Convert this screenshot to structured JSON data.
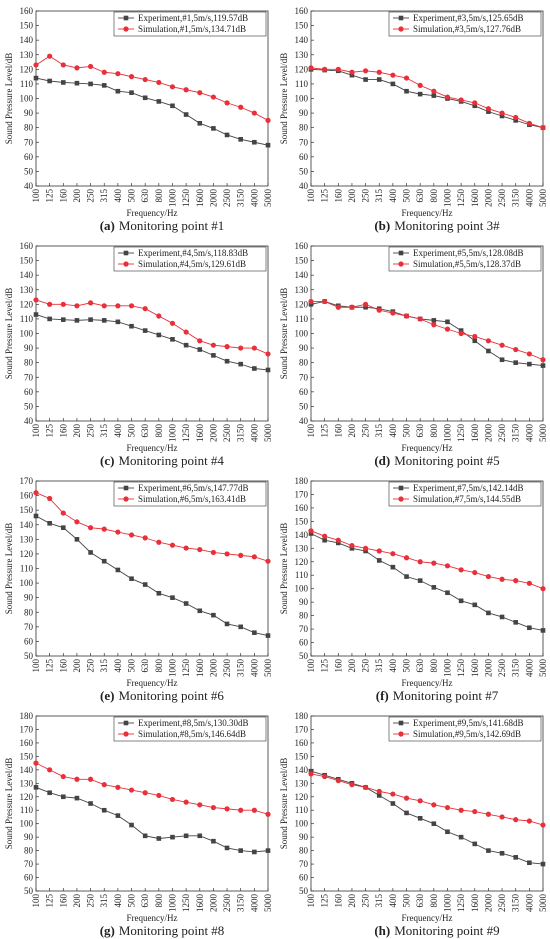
{
  "chart_data": [
    {
      "type": "line",
      "caption_tag": "(a)",
      "caption": "Monitoring point #1",
      "xlabel": "Frequency/Hz",
      "ylabel": "Sound Pressure Level/dB",
      "categories": [
        "100",
        "125",
        "160",
        "200",
        "250",
        "315",
        "400",
        "500",
        "630",
        "800",
        "1000",
        "1250",
        "1600",
        "2000",
        "2500",
        "3150",
        "4000",
        "5000"
      ],
      "ylim": [
        40,
        160
      ],
      "yticks": [
        40,
        50,
        60,
        70,
        80,
        90,
        100,
        110,
        120,
        130,
        140,
        150,
        160
      ],
      "legend": "upper right",
      "series": [
        {
          "name": "Experiment,#1,5m/s,119.57dB",
          "color": "#444444",
          "marker": "square",
          "values": [
            114,
            112,
            111,
            110.5,
            110,
            109,
            105,
            104,
            100.5,
            98,
            95,
            89,
            83,
            79.5,
            75,
            72,
            70,
            68
          ]
        },
        {
          "name": "Simulation,#1,5m/s,134.71dB",
          "color": "#e8303a",
          "marker": "circle",
          "values": [
            123,
            129,
            123,
            121,
            122,
            118,
            117,
            115,
            113,
            111,
            108,
            106,
            104,
            101,
            97,
            94,
            90,
            85
          ]
        }
      ]
    },
    {
      "type": "line",
      "caption_tag": "(b)",
      "caption": "Monitoring point 3#",
      "xlabel": "Frequency/Hz",
      "ylabel": "Sound Pressure Level/dB",
      "categories": [
        "100",
        "125",
        "160",
        "200",
        "250",
        "315",
        "400",
        "500",
        "630",
        "800",
        "1000",
        "1250",
        "1600",
        "2000",
        "2500",
        "3150",
        "4000",
        "5000"
      ],
      "ylim": [
        40,
        160
      ],
      "yticks": [
        40,
        50,
        60,
        70,
        80,
        90,
        100,
        110,
        120,
        130,
        140,
        150,
        160
      ],
      "legend": "upper right",
      "series": [
        {
          "name": "Experiment,#3,5m/s,125.65dB",
          "color": "#444444",
          "marker": "square",
          "values": [
            120,
            119.5,
            119,
            116,
            113,
            113,
            110,
            105,
            103,
            102,
            100,
            98,
            95,
            91,
            88,
            85,
            82,
            80
          ]
        },
        {
          "name": "Simulation,#3,5m/s,127.76dB",
          "color": "#e8303a",
          "marker": "circle",
          "values": [
            121,
            120,
            120,
            118,
            119,
            118,
            116,
            114,
            109,
            105,
            101,
            99,
            97,
            93,
            90,
            87,
            83,
            80
          ]
        }
      ]
    },
    {
      "type": "line",
      "caption_tag": "(c)",
      "caption": "Monitoring point #4",
      "xlabel": "Frequency/Hz",
      "ylabel": "Sound Pressure Level/dB",
      "categories": [
        "100",
        "125",
        "160",
        "200",
        "250",
        "315",
        "400",
        "500",
        "630",
        "800",
        "1000",
        "1250",
        "1600",
        "2000",
        "2500",
        "3150",
        "4000",
        "5000"
      ],
      "ylim": [
        40,
        160
      ],
      "yticks": [
        40,
        50,
        60,
        70,
        80,
        90,
        100,
        110,
        120,
        130,
        140,
        150,
        160
      ],
      "legend": "upper right",
      "series": [
        {
          "name": "Experiment,#4,5m/s,118.83dB",
          "color": "#444444",
          "marker": "square",
          "values": [
            113,
            110,
            109.5,
            109,
            109.5,
            109,
            108,
            105,
            102,
            99,
            96,
            92,
            89,
            85,
            81,
            79,
            76,
            75
          ]
        },
        {
          "name": "Simulation,#4,5m/s,129.61dB",
          "color": "#e8303a",
          "marker": "circle",
          "values": [
            123,
            120,
            120,
            119,
            121,
            119,
            119,
            119,
            117,
            112,
            107,
            101,
            95,
            92,
            91,
            90,
            90,
            86
          ]
        }
      ]
    },
    {
      "type": "line",
      "caption_tag": "(d)",
      "caption": "Monitoring point #5",
      "xlabel": "Frequency/Hz",
      "ylabel": "Sound Pressure Level/dB",
      "categories": [
        "100",
        "125",
        "160",
        "200",
        "250",
        "315",
        "400",
        "500",
        "630",
        "800",
        "1000",
        "1250",
        "1600",
        "2000",
        "2500",
        "3150",
        "4000",
        "5000"
      ],
      "ylim": [
        40,
        160
      ],
      "yticks": [
        40,
        50,
        60,
        70,
        80,
        90,
        100,
        110,
        120,
        130,
        140,
        150,
        160
      ],
      "legend": "upper right",
      "series": [
        {
          "name": "Experiment,#5,5m/s,128.08dB",
          "color": "#444444",
          "marker": "square",
          "values": [
            120,
            122,
            119,
            118,
            118,
            117,
            115,
            112,
            110,
            109,
            108,
            102,
            95,
            88,
            82,
            80,
            79,
            78
          ]
        },
        {
          "name": "Simulation,#5,5m/s,128.37dB",
          "color": "#e8303a",
          "marker": "circle",
          "values": [
            122,
            122,
            118,
            118,
            120,
            116,
            114,
            112,
            110,
            106,
            103,
            100,
            98,
            95,
            92,
            89,
            86,
            82
          ]
        }
      ]
    },
    {
      "type": "line",
      "caption_tag": "(e)",
      "caption": "Monitoring point #6",
      "xlabel": "Frequency/Hz",
      "ylabel": "Sound Pressure Level/dB",
      "categories": [
        "100",
        "125",
        "160",
        "200",
        "250",
        "315",
        "400",
        "500",
        "630",
        "800",
        "1000",
        "1250",
        "1600",
        "2000",
        "2500",
        "3150",
        "4000",
        "5000"
      ],
      "ylim": [
        50,
        170
      ],
      "yticks": [
        50,
        60,
        70,
        80,
        90,
        100,
        110,
        120,
        130,
        140,
        150,
        160,
        170
      ],
      "legend": "upper right",
      "series": [
        {
          "name": "Experiment,#6,5m/s,147.77dB",
          "color": "#444444",
          "marker": "square",
          "values": [
            146,
            141,
            138,
            130,
            121,
            115,
            109,
            103,
            99,
            93,
            90,
            86,
            81,
            78,
            72,
            70,
            66,
            64
          ]
        },
        {
          "name": "Simulation,#6,5m/s,163.41dB",
          "color": "#e8303a",
          "marker": "circle",
          "values": [
            162,
            158,
            148,
            142,
            138,
            137,
            135,
            133,
            131,
            128,
            126,
            124,
            123,
            121,
            120,
            119,
            118,
            115
          ]
        }
      ]
    },
    {
      "type": "line",
      "caption_tag": "(f)",
      "caption": "Monitoring point #7",
      "xlabel": "Frequency/Hz",
      "ylabel": "Sound Pressure Level/dB",
      "categories": [
        "100",
        "125",
        "160",
        "200",
        "250",
        "315",
        "400",
        "500",
        "630",
        "800",
        "1000",
        "1250",
        "1600",
        "2000",
        "2500",
        "3150",
        "4000",
        "5000"
      ],
      "ylim": [
        50,
        180
      ],
      "yticks": [
        50,
        60,
        70,
        80,
        90,
        100,
        110,
        120,
        130,
        140,
        150,
        160,
        170,
        180
      ],
      "legend": "upper right",
      "series": [
        {
          "name": "Experiment,#7,5m/s,142.14dB",
          "color": "#444444",
          "marker": "square",
          "values": [
            141,
            136,
            134,
            130,
            128,
            121,
            116,
            109,
            106,
            101,
            97,
            91,
            88,
            82,
            79,
            75,
            71,
            69
          ]
        },
        {
          "name": "Simulation,#7,5m/s,144.55dB",
          "color": "#e8303a",
          "marker": "circle",
          "values": [
            143,
            139,
            136,
            132,
            130,
            128,
            126,
            123,
            120,
            119,
            117,
            114,
            112,
            109,
            107,
            106,
            104,
            100
          ]
        }
      ]
    },
    {
      "type": "line",
      "caption_tag": "(g)",
      "caption": "Monitoring point #8",
      "xlabel": "Frequency/Hz",
      "ylabel": "Sound Pressure Level/dB",
      "categories": [
        "100",
        "125",
        "160",
        "200",
        "250",
        "315",
        "400",
        "500",
        "630",
        "800",
        "1000",
        "1250",
        "1600",
        "2000",
        "2500",
        "3150",
        "4000",
        "5000"
      ],
      "ylim": [
        50,
        180
      ],
      "yticks": [
        50,
        60,
        70,
        80,
        90,
        100,
        110,
        120,
        130,
        140,
        150,
        160,
        170,
        180
      ],
      "legend": "upper right",
      "series": [
        {
          "name": "Experiment,#8,5m/s,130.30dB",
          "color": "#444444",
          "marker": "square",
          "values": [
            127,
            123,
            120,
            119,
            115,
            110,
            106,
            99,
            91,
            89,
            90,
            91,
            91,
            87,
            82,
            80,
            79,
            80
          ]
        },
        {
          "name": "Simulation,#8,5m/s,146.64dB",
          "color": "#e8303a",
          "marker": "circle",
          "values": [
            145,
            140,
            135,
            133,
            133,
            129,
            127,
            125,
            123,
            121,
            118,
            116,
            114,
            112,
            111,
            110,
            110,
            107
          ]
        }
      ]
    },
    {
      "type": "line",
      "caption_tag": "(h)",
      "caption": "Monitoring point #9",
      "xlabel": "Frequency/Hz",
      "ylabel": "Sound Pressure Level/dB",
      "categories": [
        "100",
        "125",
        "160",
        "200",
        "250",
        "315",
        "400",
        "500",
        "630",
        "800",
        "1000",
        "1250",
        "1600",
        "2000",
        "2500",
        "3150",
        "4000",
        "5000"
      ],
      "ylim": [
        50,
        180
      ],
      "yticks": [
        50,
        60,
        70,
        80,
        90,
        100,
        110,
        120,
        130,
        140,
        150,
        160,
        170,
        180
      ],
      "legend": "upper right",
      "series": [
        {
          "name": "Experiment,#9,5m/s,141.68dB",
          "color": "#444444",
          "marker": "square",
          "values": [
            139,
            136,
            133,
            130,
            127,
            121,
            115,
            108,
            104,
            100,
            94,
            90,
            85,
            80,
            78,
            75,
            71,
            70
          ]
        },
        {
          "name": "Simulation,#9,5m/s,142.69dB",
          "color": "#e8303a",
          "marker": "circle",
          "values": [
            137,
            135,
            132,
            129,
            127,
            124,
            122,
            119,
            117,
            114,
            112,
            110,
            109,
            107,
            105,
            103,
            102,
            99
          ]
        }
      ]
    }
  ]
}
